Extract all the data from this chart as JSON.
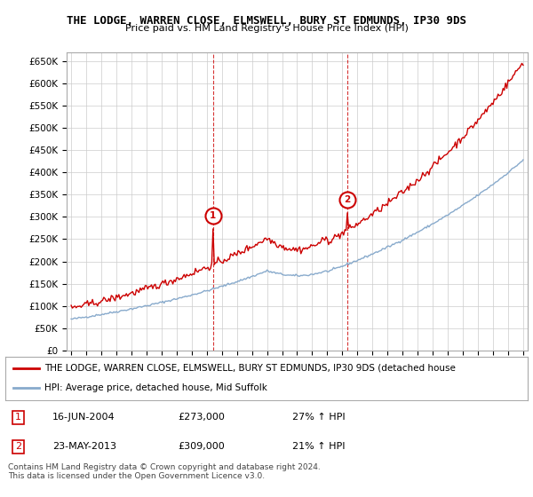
{
  "title": "THE LODGE, WARREN CLOSE, ELMSWELL, BURY ST EDMUNDS, IP30 9DS",
  "subtitle": "Price paid vs. HM Land Registry's House Price Index (HPI)",
  "ylim": [
    0,
    670000
  ],
  "yticks": [
    0,
    50000,
    100000,
    150000,
    200000,
    250000,
    300000,
    350000,
    400000,
    450000,
    500000,
    550000,
    600000,
    650000
  ],
  "ytick_labels": [
    "£0",
    "£50K",
    "£100K",
    "£150K",
    "£200K",
    "£250K",
    "£300K",
    "£350K",
    "£400K",
    "£450K",
    "£500K",
    "£550K",
    "£600K",
    "£650K"
  ],
  "red_color": "#cc0000",
  "blue_color": "#88aacc",
  "marker_bg": "#ffffff",
  "sale1_year": 2004.458,
  "sale1_price": 273000,
  "sale2_year": 2013.375,
  "sale2_price": 309000,
  "legend_line1": "THE LODGE, WARREN CLOSE, ELMSWELL, BURY ST EDMUNDS, IP30 9DS (detached house",
  "legend_line2": "HPI: Average price, detached house, Mid Suffolk",
  "table_row1": [
    "1",
    "16-JUN-2004",
    "£273,000",
    "27% ↑ HPI"
  ],
  "table_row2": [
    "2",
    "23-MAY-2013",
    "£309,000",
    "21% ↑ HPI"
  ],
  "footnote": "Contains HM Land Registry data © Crown copyright and database right 2024.\nThis data is licensed under the Open Government Licence v3.0.",
  "background_color": "#ffffff",
  "grid_color": "#cccccc",
  "xlim_left": 1994.7,
  "xlim_right": 2025.3
}
